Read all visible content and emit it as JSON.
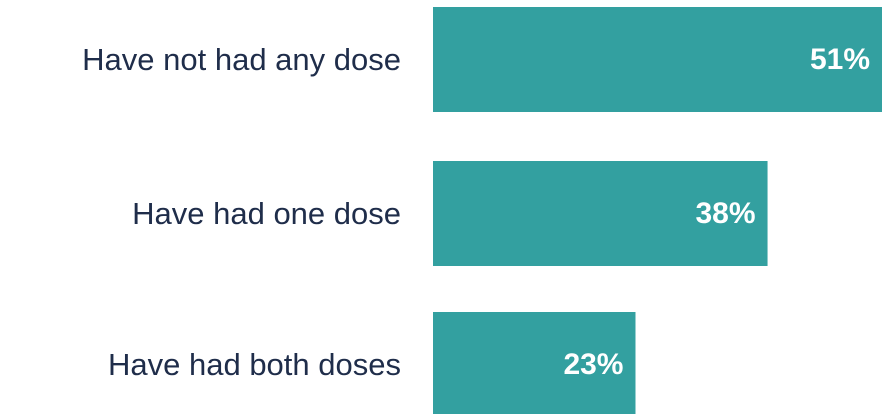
{
  "colors": {
    "bar": "#33a0a0",
    "category_text": "#1f2d4a",
    "value_text": "#ffffff",
    "background": "#ffffff"
  },
  "chart_data": {
    "type": "bar",
    "orientation": "horizontal",
    "categories": [
      "Have not had any dose",
      "Have had one dose",
      "Have had both doses"
    ],
    "values": [
      51,
      38,
      23
    ],
    "value_labels": [
      "51%",
      "38%",
      "23%"
    ],
    "unit": "%",
    "title": "",
    "xlabel": "",
    "ylabel": "",
    "xlim": [
      0,
      51
    ],
    "grid": false,
    "legend": "none"
  }
}
